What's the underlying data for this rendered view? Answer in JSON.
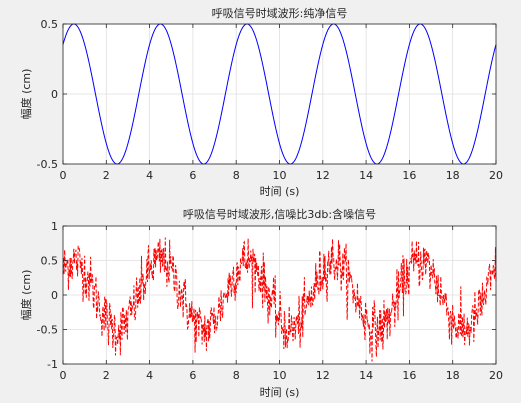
{
  "figure": {
    "background": "#f0f0f0",
    "axes_background": "#ffffff"
  },
  "chart_data": [
    {
      "type": "line",
      "title": "呼吸信号时域波形:纯净信号",
      "xlabel": "时间 (s)",
      "ylabel": "幅度 (cm)",
      "xlim": [
        0,
        20
      ],
      "ylim": [
        -0.5,
        0.5
      ],
      "xticks": [
        0,
        2,
        4,
        6,
        8,
        10,
        12,
        14,
        16,
        18,
        20
      ],
      "yticks": [
        -0.5,
        0,
        0.5
      ],
      "ytick_labels": [
        "-0.5",
        "0",
        "0.5"
      ],
      "grid": true,
      "color": "#0000ff",
      "line_style": "solid",
      "signal": {
        "amplitude": 0.5,
        "frequency_hz": 0.25,
        "phase_rad": 0.785
      },
      "series": [
        {
          "x": [
            0,
            0.5,
            1,
            1.5,
            2,
            2.5,
            3,
            3.5,
            4,
            4.5,
            5,
            5.5,
            6,
            6.5,
            7,
            7.5,
            8,
            8.5,
            9,
            9.5,
            10,
            10.5,
            11,
            11.5,
            12,
            12.5,
            13,
            13.5,
            14,
            14.5,
            15,
            15.5,
            16,
            16.5,
            17,
            17.5,
            18,
            18.5,
            19,
            19.5,
            20
          ],
          "y": [
            0.354,
            0.5,
            0.354,
            0,
            -0.354,
            -0.5,
            -0.354,
            0,
            0.354,
            0.5,
            0.354,
            0,
            -0.354,
            -0.5,
            -0.354,
            0,
            0.354,
            0.5,
            0.354,
            0,
            -0.354,
            -0.5,
            -0.354,
            0,
            0.354,
            0.5,
            0.354,
            0,
            -0.354,
            -0.5,
            -0.354,
            0,
            0.354,
            0.5,
            0.354,
            0,
            -0.354,
            -0.5,
            -0.354,
            0,
            0.354
          ]
        }
      ]
    },
    {
      "type": "line",
      "title": "呼吸信号时域波形,信噪比3db:含噪信号",
      "xlabel": "时间 (s)",
      "ylabel": "幅度 (cm)",
      "xlim": [
        0,
        20
      ],
      "ylim": [
        -1,
        1
      ],
      "xticks": [
        0,
        2,
        4,
        6,
        8,
        10,
        12,
        14,
        16,
        18,
        20
      ],
      "yticks": [
        -1,
        -0.5,
        0,
        0.5,
        1
      ],
      "ytick_labels": [
        "-1",
        "-0.5",
        "0",
        "0.5",
        "1"
      ],
      "grid": true,
      "color": "#ff0000",
      "line_style": "dashed",
      "signal": {
        "amplitude": 0.5,
        "frequency_hz": 0.25,
        "phase_rad": 0.785,
        "snr_db": 3
      },
      "series": [
        {
          "x": [
            0,
            0.5,
            1,
            1.5,
            2,
            2.5,
            3,
            3.5,
            4,
            4.5,
            5,
            5.5,
            6,
            6.5,
            7,
            7.5,
            8,
            8.5,
            9,
            9.5,
            10,
            10.5,
            11,
            11.5,
            12,
            12.5,
            13,
            13.5,
            14,
            14.5,
            15,
            15.5,
            16,
            16.5,
            17,
            17.5,
            18,
            18.5,
            19,
            19.5,
            20
          ],
          "y": [
            0.35,
            0.75,
            0.4,
            0.05,
            -0.35,
            -0.55,
            -0.4,
            0.05,
            0.45,
            0.7,
            0.4,
            0.0,
            -0.35,
            -0.5,
            -0.35,
            0.05,
            0.35,
            0.6,
            0.3,
            0.05,
            -0.45,
            -0.5,
            -0.4,
            0.1,
            0.4,
            0.75,
            0.3,
            0.05,
            -0.4,
            -0.6,
            -0.35,
            0.05,
            0.4,
            0.7,
            0.35,
            -0.05,
            -0.35,
            -0.7,
            -0.35,
            0.0,
            0.3
          ]
        }
      ]
    }
  ]
}
